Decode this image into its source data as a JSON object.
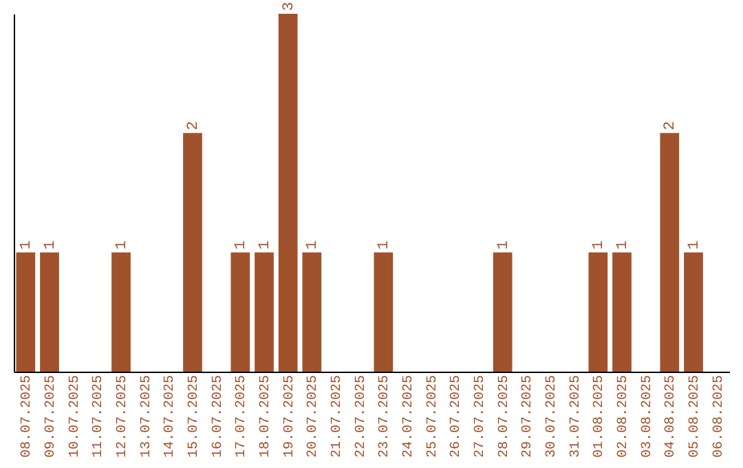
{
  "chart_data": {
    "type": "bar",
    "categories": [
      "08.07.2025",
      "09.07.2025",
      "10.07.2025",
      "11.07.2025",
      "12.07.2025",
      "13.07.2025",
      "14.07.2025",
      "15.07.2025",
      "16.07.2025",
      "17.07.2025",
      "18.07.2025",
      "19.07.2025",
      "20.07.2025",
      "21.07.2025",
      "22.07.2025",
      "23.07.2025",
      "24.07.2025",
      "25.07.2025",
      "26.07.2025",
      "27.07.2025",
      "28.07.2025",
      "29.07.2025",
      "30.07.2025",
      "31.07.2025",
      "01.08.2025",
      "02.08.2025",
      "03.08.2025",
      "04.08.2025",
      "05.08.2025",
      "06.08.2025"
    ],
    "values": [
      1,
      1,
      0,
      0,
      1,
      0,
      0,
      2,
      0,
      1,
      1,
      3,
      1,
      0,
      0,
      1,
      0,
      0,
      0,
      0,
      1,
      0,
      0,
      0,
      1,
      1,
      0,
      2,
      1,
      0
    ],
    "value_labels": [
      "1",
      "1",
      null,
      null,
      "1",
      null,
      null,
      "2",
      null,
      "1",
      "1",
      "3",
      "1",
      null,
      null,
      "1",
      null,
      null,
      null,
      null,
      "1",
      null,
      null,
      null,
      "1",
      "1",
      null,
      "2",
      "1",
      null
    ],
    "color": "#a0522d",
    "grid": false,
    "tick_labels": "x"
  }
}
